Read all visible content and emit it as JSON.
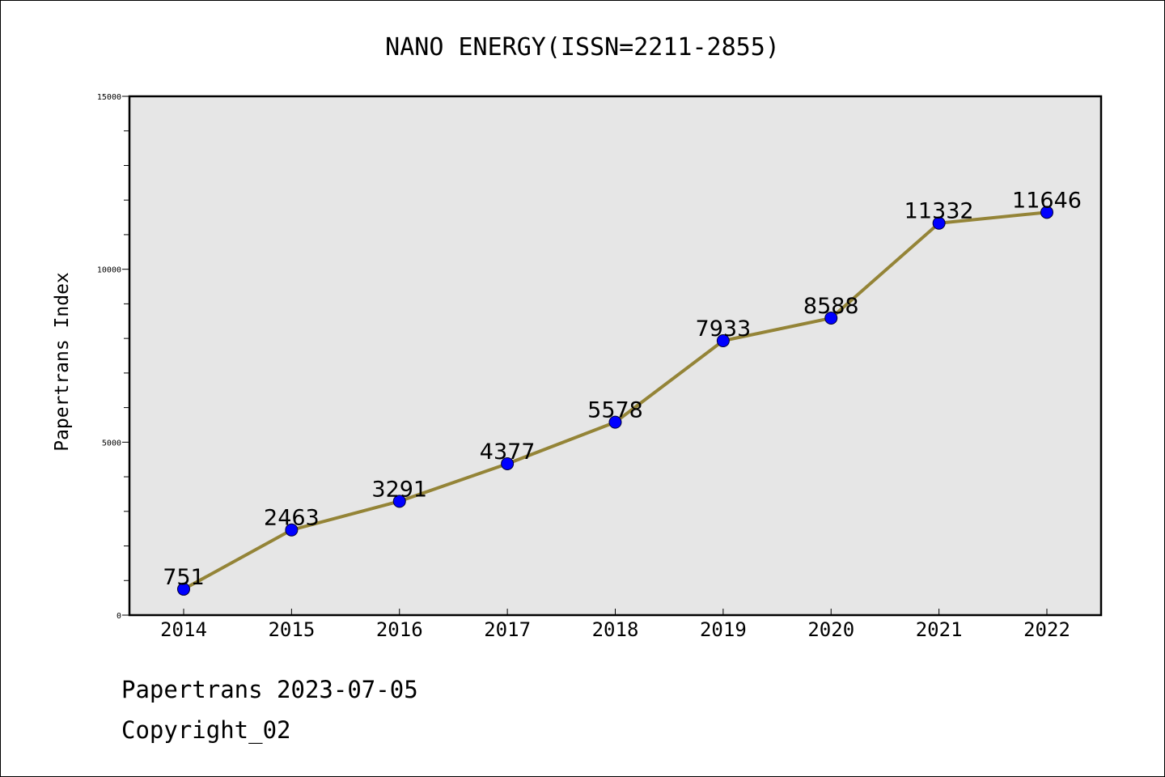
{
  "chart_data": {
    "type": "line",
    "title": "NANO ENERGY(ISSN=2211-2855)",
    "xlabel": "",
    "ylabel": "Papertrans Index",
    "categories": [
      "2014",
      "2015",
      "2016",
      "2017",
      "2018",
      "2019",
      "2020",
      "2021",
      "2022"
    ],
    "series": [
      {
        "values": [
          751,
          2463,
          3291,
          4377,
          5578,
          7933,
          8588,
          11332,
          11646
        ],
        "labels": [
          "751",
          "2463",
          "3291",
          "4377",
          "5578",
          "7933",
          "8588",
          "11332",
          "11646"
        ]
      }
    ],
    "ylim": [
      0,
      15000
    ],
    "yticks": [
      0,
      5000,
      10000,
      15000
    ],
    "ytick_labels": [
      "0",
      "5000",
      "10000",
      "15000"
    ],
    "y_minor_step": 1000,
    "grid": false,
    "colors": {
      "plot_background": "#e6e6e6",
      "line": "#948437",
      "marker": "#0000ff",
      "marker_edge": "#000033"
    }
  },
  "footer": {
    "line1": "Papertrans 2023-07-05",
    "line2": "Copyright_02"
  }
}
